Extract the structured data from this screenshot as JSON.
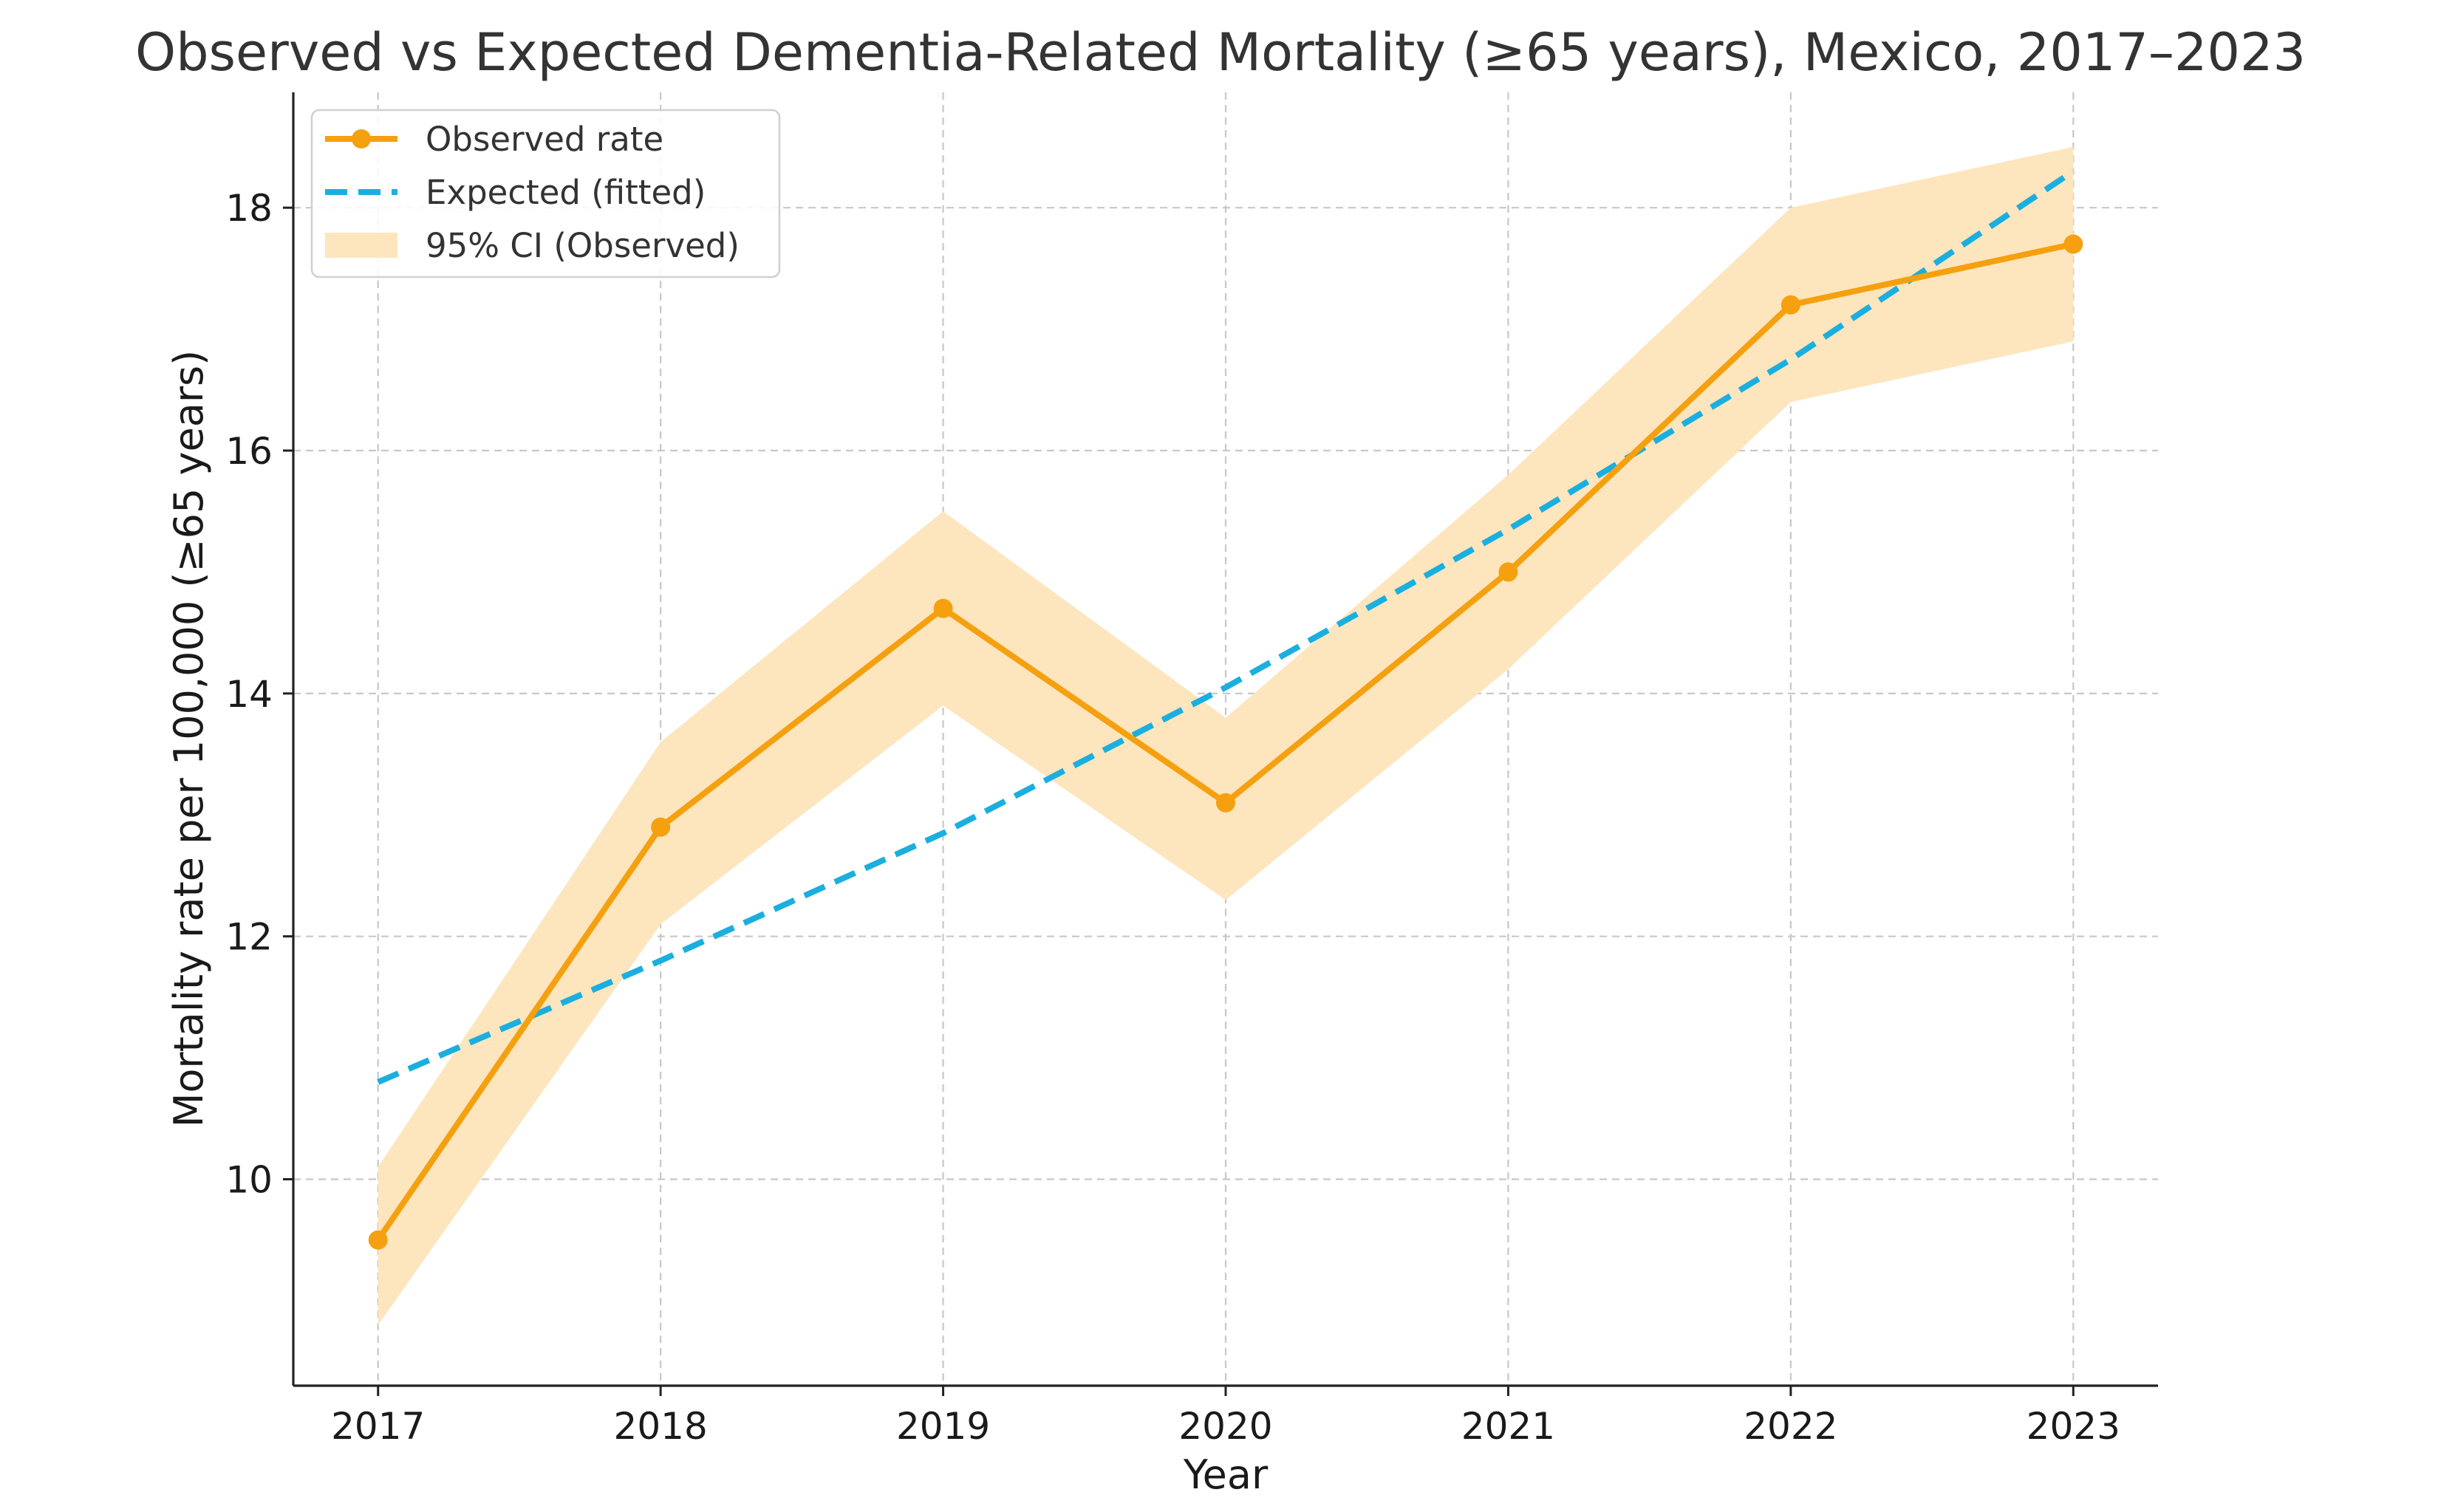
{
  "chart_data": {
    "type": "line",
    "title": "Observed vs Expected Dementia-Related Mortality (≥65 years), Mexico, 2017–2023",
    "xlabel": "Year",
    "ylabel": "Mortality rate per 100,000 (≥65 years)",
    "x": [
      2017,
      2018,
      2019,
      2020,
      2021,
      2022,
      2023
    ],
    "xlim": [
      2016.7,
      2023.3
    ],
    "ylim": [
      8.3,
      18.95
    ],
    "yticks": [
      10,
      12,
      14,
      16,
      18
    ],
    "grid": true,
    "legend_position": "top-left",
    "series": [
      {
        "name": "Observed rate",
        "kind": "line-markers",
        "color": "#F5A00F",
        "values": [
          9.5,
          12.9,
          14.7,
          13.1,
          15.0,
          17.2,
          17.7
        ]
      },
      {
        "name": "Expected (fitted)",
        "kind": "dashed-line",
        "color": "#1AAFDF",
        "values": [
          10.8,
          11.8,
          12.85,
          14.05,
          15.35,
          16.75,
          18.3
        ]
      },
      {
        "name": "95% CI (Observed)",
        "kind": "band",
        "color": "#FDE5BE",
        "lower": [
          8.8,
          12.1,
          13.9,
          12.3,
          14.2,
          16.4,
          16.9
        ],
        "upper": [
          10.1,
          13.6,
          15.5,
          13.8,
          15.8,
          18.0,
          18.5
        ]
      }
    ]
  }
}
